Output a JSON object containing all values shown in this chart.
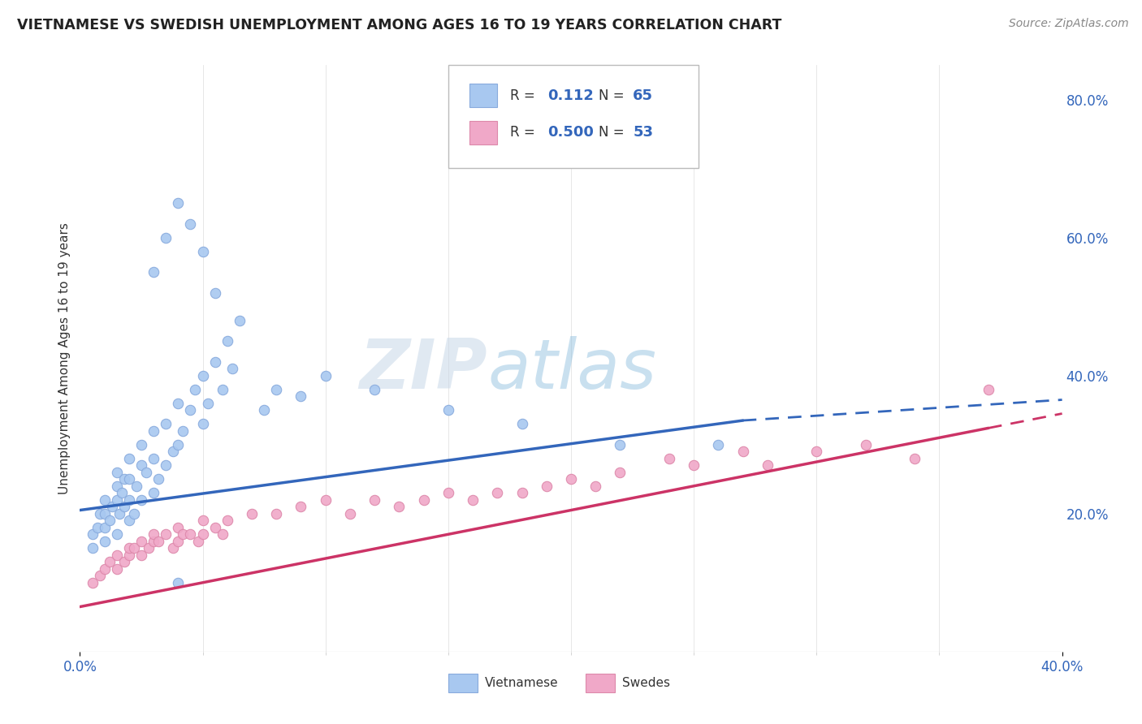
{
  "title": "VIETNAMESE VS SWEDISH UNEMPLOYMENT AMONG AGES 16 TO 19 YEARS CORRELATION CHART",
  "source": "Source: ZipAtlas.com",
  "ylabel": "Unemployment Among Ages 16 to 19 years",
  "xlim": [
    0.0,
    0.4
  ],
  "ylim": [
    0.0,
    0.85
  ],
  "right_yticks": [
    0.2,
    0.4,
    0.6,
    0.8
  ],
  "right_yticklabels": [
    "20.0%",
    "40.0%",
    "60.0%",
    "80.0%"
  ],
  "xticks": [
    0.0,
    0.4
  ],
  "xticklabels": [
    "0.0%",
    "40.0%"
  ],
  "viet_color": "#a8c8f0",
  "swede_color": "#f0a8c8",
  "viet_line_color": "#3366bb",
  "swede_line_color": "#cc3366",
  "R_viet": 0.112,
  "N_viet": 65,
  "R_swede": 0.5,
  "N_swede": 53,
  "background_color": "#ffffff",
  "grid_color": "#cccccc",
  "viet_line_start_y": 0.205,
  "viet_line_end_solid_x": 0.27,
  "viet_line_end_y_at_solid": 0.335,
  "viet_line_end_x": 0.4,
  "viet_line_end_y": 0.365,
  "swede_line_start_y": 0.065,
  "swede_line_end_x": 0.4,
  "swede_line_end_y": 0.345
}
